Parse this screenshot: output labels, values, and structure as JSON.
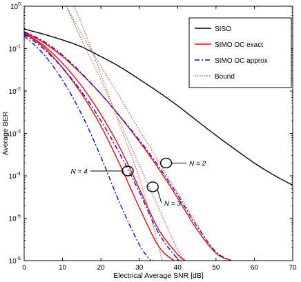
{
  "chart_data": {
    "type": "line",
    "xlabel": "Electrical Average SNR [dB]",
    "ylabel": "Average BER",
    "xlim": [
      0,
      70
    ],
    "ylim": [
      1e-06,
      1
    ],
    "yscale": "log",
    "grid": false,
    "legend_position": "top-right",
    "x_ticks": [
      "0",
      "10",
      "20",
      "30",
      "40",
      "50",
      "60",
      "70"
    ],
    "y_ticks": [
      {
        "value": 1e-06,
        "mant": "10",
        "exp": "-6"
      },
      {
        "value": 1e-05,
        "mant": "10",
        "exp": "-5"
      },
      {
        "value": 0.0001,
        "mant": "10",
        "exp": "-4"
      },
      {
        "value": 0.001,
        "mant": "10",
        "exp": "-3"
      },
      {
        "value": 0.01,
        "mant": "10",
        "exp": "-2"
      },
      {
        "value": 0.1,
        "mant": "10",
        "exp": "-1"
      },
      {
        "value": 1,
        "mant": "10",
        "exp": "0"
      }
    ],
    "legend": [
      {
        "label": "SISO",
        "color": "#000000",
        "dash": "solid"
      },
      {
        "label": "SIMO OC exact",
        "color": "#ff0000",
        "dash": "solid"
      },
      {
        "label": "SIMO OC approx",
        "color": "#0000ff",
        "dash": "dashdot"
      },
      {
        "label": "Bound",
        "color": "#a0522d",
        "dash": "dotted"
      }
    ],
    "series": [
      {
        "name": "SISO",
        "color": "#000000",
        "dash": "solid",
        "x": [
          0,
          5,
          10,
          15,
          20,
          25,
          30,
          35,
          40,
          45,
          50,
          55,
          60,
          65,
          70
        ],
        "y": [
          0.29,
          0.22,
          0.16,
          0.11,
          0.065,
          0.037,
          0.019,
          0.0095,
          0.0045,
          0.002,
          0.0009,
          0.00042,
          0.0002,
          0.000105,
          6e-05
        ]
      },
      {
        "name": "SIMO OC exact",
        "color": "#ff0000",
        "dash": "solid",
        "x": [
          0,
          5,
          10,
          15,
          20,
          25,
          30,
          35,
          40,
          45,
          50,
          54
        ],
        "y": [
          0.25,
          0.14,
          0.065,
          0.025,
          0.0085,
          0.0025,
          0.00065,
          0.00015,
          3e-05,
          5.5e-06,
          1.5e-06,
          1e-06
        ]
      },
      {
        "name": "SIMO OC exact",
        "color": "#ff0000",
        "dash": "solid",
        "x": [
          0,
          5,
          10,
          15,
          20,
          25,
          30,
          35,
          40,
          42
        ],
        "y": [
          0.24,
          0.12,
          0.045,
          0.013,
          0.0028,
          0.00045,
          5e-05,
          5.5e-06,
          1.4e-06,
          1e-06
        ]
      },
      {
        "name": "SIMO OC exact",
        "color": "#ff0000",
        "dash": "solid",
        "x": [
          0,
          5,
          10,
          15,
          20,
          25,
          30,
          35,
          39
        ],
        "y": [
          0.23,
          0.11,
          0.035,
          0.0085,
          0.0015,
          0.00018,
          1.8e-05,
          2.2e-06,
          1e-06
        ]
      },
      {
        "name": "SIMO OC approx",
        "color": "#0000ff",
        "dash": "dashdot",
        "x": [
          0,
          5,
          10,
          15,
          20,
          25,
          30,
          35,
          40,
          45,
          50,
          54
        ],
        "y": [
          0.25,
          0.15,
          0.07,
          0.026,
          0.0085,
          0.0025,
          0.0007,
          0.00017,
          3.5e-05,
          6.5e-06,
          1.6e-06,
          1e-06
        ]
      },
      {
        "name": "SIMO OC approx",
        "color": "#0000ff",
        "dash": "dashdot",
        "x": [
          0,
          5,
          10,
          15,
          20,
          25,
          30,
          35,
          40,
          41
        ],
        "y": [
          0.22,
          0.1,
          0.035,
          0.0095,
          0.002,
          0.00032,
          4.2e-05,
          4.5e-06,
          1.1e-06,
          1e-06
        ]
      },
      {
        "name": "SIMO OC approx",
        "color": "#0000ff",
        "dash": "dashdot",
        "x": [
          0,
          5,
          10,
          15,
          20,
          25,
          30,
          33
        ],
        "y": [
          0.2,
          0.075,
          0.018,
          0.0028,
          0.00028,
          2.2e-05,
          2.4e-06,
          1e-06
        ]
      },
      {
        "name": "Bound",
        "color": "#a0522d",
        "dash": "dotted",
        "x": [
          11,
          15,
          20,
          25,
          30,
          35,
          40,
          45,
          50,
          54
        ],
        "y": [
          1,
          0.22,
          0.038,
          0.007,
          0.0012,
          0.00022,
          4e-05,
          7.5e-06,
          1.5e-06,
          1e-06
        ]
      },
      {
        "name": "Bound",
        "color": "#a0522d",
        "dash": "dotted",
        "x": [
          11,
          15,
          20,
          25,
          30,
          35,
          40,
          42
        ],
        "y": [
          1,
          0.16,
          0.018,
          0.0018,
          0.00018,
          1.8e-05,
          1.8e-06,
          1e-06
        ]
      },
      {
        "name": "Bound",
        "color": "#a0522d",
        "dash": "dotted",
        "x": [
          13,
          15,
          20,
          25,
          30,
          34,
          36
        ],
        "y": [
          1,
          0.38,
          0.025,
          0.0015,
          9e-05,
          5e-06,
          1e-06
        ]
      }
    ],
    "annotations": [
      {
        "text": "N = 2",
        "target": [
          37,
          0.0002
        ],
        "label_at": [
          43,
          0.0002
        ],
        "side": "right"
      },
      {
        "text": "N = 3",
        "target": [
          33.5,
          5.5e-05
        ],
        "label_at": [
          36.5,
          2.3e-05
        ],
        "side": "right"
      },
      {
        "text": "N = 4",
        "target": [
          27,
          0.00013
        ],
        "label_at": [
          16.5,
          0.00013
        ],
        "side": "left"
      }
    ]
  }
}
